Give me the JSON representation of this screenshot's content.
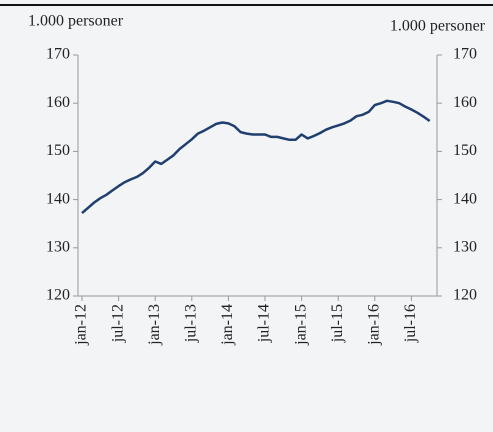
{
  "chart_data": {
    "type": "line",
    "ylabel": "1.000 personer",
    "y2label": "1.000 personer",
    "categories": [
      "jan-12",
      null,
      null,
      null,
      null,
      null,
      "jul-12",
      null,
      null,
      null,
      null,
      null,
      "jan-13",
      null,
      null,
      null,
      null,
      null,
      "jul-13",
      null,
      null,
      null,
      null,
      null,
      "jan-14",
      null,
      null,
      null,
      null,
      null,
      "jul-14",
      null,
      null,
      null,
      null,
      null,
      "jan-15",
      null,
      null,
      null,
      null,
      null,
      "jul-15",
      null,
      null,
      null,
      null,
      null,
      "jan-16",
      null,
      null,
      null,
      null,
      null,
      "jul-16",
      null,
      null,
      null
    ],
    "series": [
      {
        "color": "#1f3f6e",
        "values": [
          137.2,
          138.3,
          139.4,
          140.3,
          141,
          141.9,
          142.8,
          143.6,
          144.2,
          144.7,
          145.5,
          146.6,
          147.9,
          147.4,
          148.3,
          149.2,
          150.5,
          151.5,
          152.5,
          153.7,
          154.3,
          155,
          155.7,
          156,
          155.8,
          155.2,
          154,
          153.7,
          153.5,
          153.5,
          153.5,
          153,
          153,
          152.7,
          152.4,
          152.4,
          153.5,
          152.7,
          153.2,
          153.8,
          154.5,
          155,
          155.4,
          155.8,
          156.4,
          157.3,
          157.6,
          158.2,
          159.6,
          160,
          160.5,
          160.3,
          160,
          159.3,
          158.7,
          158,
          157.2,
          156.3
        ]
      }
    ],
    "ylim": [
      120,
      170
    ],
    "yticks": [
      120,
      130,
      140,
      150,
      160,
      170
    ],
    "y2lim": [
      120,
      170
    ],
    "y2ticks": [
      120,
      130,
      140,
      150,
      160,
      170
    ]
  }
}
